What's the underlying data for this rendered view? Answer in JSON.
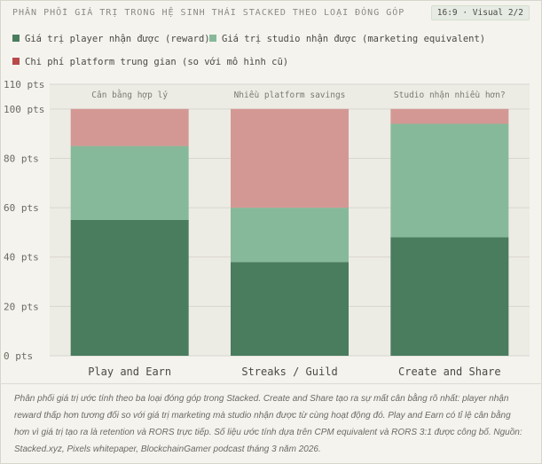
{
  "header": {
    "title": "PHÂN PHỐI GIÁ TRỊ TRONG HỆ SINH THÁI STACKED THEO LOẠI ĐÓNG GÓP",
    "badge": "16:9 · Visual 2/2"
  },
  "legend": [
    {
      "label": "Giá trị player nhận được (reward)",
      "color": "#4a7c5e"
    },
    {
      "label": "Giá trị studio nhận được (marketing equivalent)",
      "color": "#86b99a"
    },
    {
      "label": "Chi phí platform trung gian (so với mô hình cũ)",
      "color": "#b84a4a"
    }
  ],
  "colors": {
    "player": "#4a7c5e",
    "studio": "#86b99a",
    "platform": "#d49894",
    "plot_bg": "#ecebe4",
    "grid": "#d8d6cf"
  },
  "chart_data": {
    "type": "bar",
    "stacked": true,
    "categories": [
      "Play and Earn",
      "Streaks / Guild",
      "Create and Share"
    ],
    "annotations": [
      "Cân bằng hợp lý",
      "Nhiều platform savings",
      "Studio nhận nhiều hơn?"
    ],
    "series": [
      {
        "name": "Giá trị player nhận được (reward)",
        "values": [
          55,
          38,
          48
        ]
      },
      {
        "name": "Giá trị studio nhận được (marketing equivalent)",
        "values": [
          30,
          22,
          46
        ]
      },
      {
        "name": "Chi phí platform trung gian (so với mô hình cũ)",
        "values": [
          15,
          40,
          6
        ]
      }
    ],
    "ylim": [
      0,
      110
    ],
    "yticks": [
      0,
      20,
      40,
      60,
      80,
      100,
      110
    ],
    "ytick_labels": [
      "0 pts",
      "20 pts",
      "40 pts",
      "60 pts",
      "80 pts",
      "100 pts",
      "110 pts"
    ],
    "grid": true
  },
  "caption": "Phân phối giá trị ước tính theo ba loại đóng góp trong Stacked. Create and Share tạo ra sự mất cân bằng rõ nhất: player nhận reward thấp hơn tương đối so với giá trị marketing mà studio nhận được từ cùng hoạt động đó. Play and Earn có tỉ lệ cân bằng hơn vì giá trị tạo ra là retention và RORS trực tiếp. Số liệu ước tính dựa trên CPM equivalent và RORS 3:1 được công bố. Nguồn: Stacked.xyz, Pixels whitepaper, BlockchainGamer podcast tháng 3 năm 2026."
}
